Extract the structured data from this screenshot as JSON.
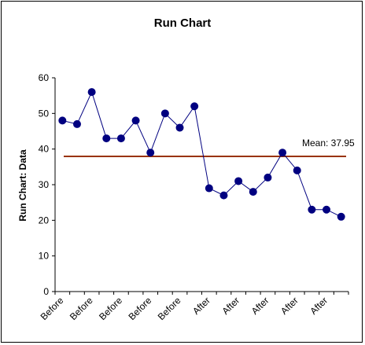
{
  "chart_data": {
    "type": "line",
    "title": "Run Chart",
    "ylabel": "Run Chart: Data",
    "xlabel": "",
    "ylim": [
      0,
      60
    ],
    "yticks": [
      "0",
      "10",
      "20",
      "30",
      "40",
      "50",
      "60"
    ],
    "categories": [
      "Before",
      "Before",
      "Before",
      "Before",
      "Before",
      "Before",
      "Before",
      "Before",
      "Before",
      "Before",
      "After",
      "After",
      "After",
      "After",
      "After",
      "After",
      "After",
      "After",
      "After",
      "After"
    ],
    "xtick_labels_shown": [
      "Before",
      "Before",
      "Before",
      "Before",
      "Before",
      "After",
      "After",
      "After",
      "After",
      "After"
    ],
    "series": [
      {
        "values": [
          48,
          47,
          56,
          43,
          43,
          48,
          39,
          50,
          46,
          52,
          29,
          27,
          31,
          28,
          32,
          39,
          34,
          23,
          23,
          21
        ]
      }
    ],
    "mean": {
      "value": 37.95,
      "label": "Mean: 37.95"
    },
    "grid": false,
    "legend": "none",
    "colors": {
      "series": "#000080",
      "mean_line": "#993300",
      "axis": "#000000"
    }
  }
}
